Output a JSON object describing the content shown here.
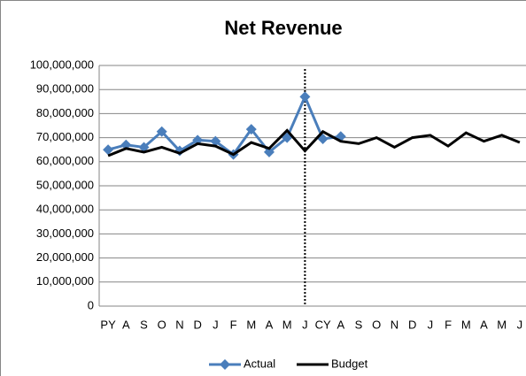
{
  "chart_data": {
    "type": "line",
    "title": "Net Revenue",
    "categories": [
      "PY",
      "A",
      "S",
      "O",
      "N",
      "D",
      "J",
      "F",
      "M",
      "A",
      "M",
      "J",
      "CY",
      "A",
      "S",
      "O",
      "N",
      "D",
      "J",
      "F",
      "M",
      "A",
      "M",
      "J"
    ],
    "series": [
      {
        "name": "Actual",
        "color": "#4a7ebb",
        "marker": "diamond",
        "values": [
          65000000,
          67000000,
          66000000,
          72500000,
          64500000,
          69000000,
          68500000,
          63000000,
          73500000,
          64000000,
          70000000,
          87000000,
          69500000,
          70500000,
          null,
          null,
          null,
          null,
          null,
          null,
          null,
          null,
          null,
          null
        ]
      },
      {
        "name": "Budget",
        "color": "#000000",
        "marker": "none",
        "values": [
          62500000,
          65500000,
          64000000,
          66000000,
          63500000,
          67500000,
          66500000,
          63000000,
          68000000,
          65500000,
          73000000,
          64500000,
          72500000,
          68500000,
          67500000,
          70000000,
          66000000,
          70000000,
          71000000,
          66500000,
          72000000,
          68500000,
          71000000,
          68000000
        ]
      }
    ],
    "ylim": [
      0,
      100000000
    ],
    "yticks": [
      0,
      {
        "value": 10000000,
        "label": "10,000,000"
      },
      {
        "value": 20000000,
        "label": "20,000,000"
      },
      {
        "value": 30000000,
        "label": "30,000,000"
      },
      {
        "value": 40000000,
        "label": "40,000,000"
      },
      {
        "value": 50000000,
        "label": "50,000,000"
      },
      {
        "value": 60000000,
        "label": "60,000,000"
      },
      {
        "value": 70000000,
        "label": "70,000,000"
      },
      {
        "value": 80000000,
        "label": "80,000,000"
      },
      {
        "value": 90000000,
        "label": "90,000,000"
      },
      {
        "value": 100000000,
        "label": "100,000,000"
      }
    ],
    "grid": true,
    "legend": "bottom"
  }
}
